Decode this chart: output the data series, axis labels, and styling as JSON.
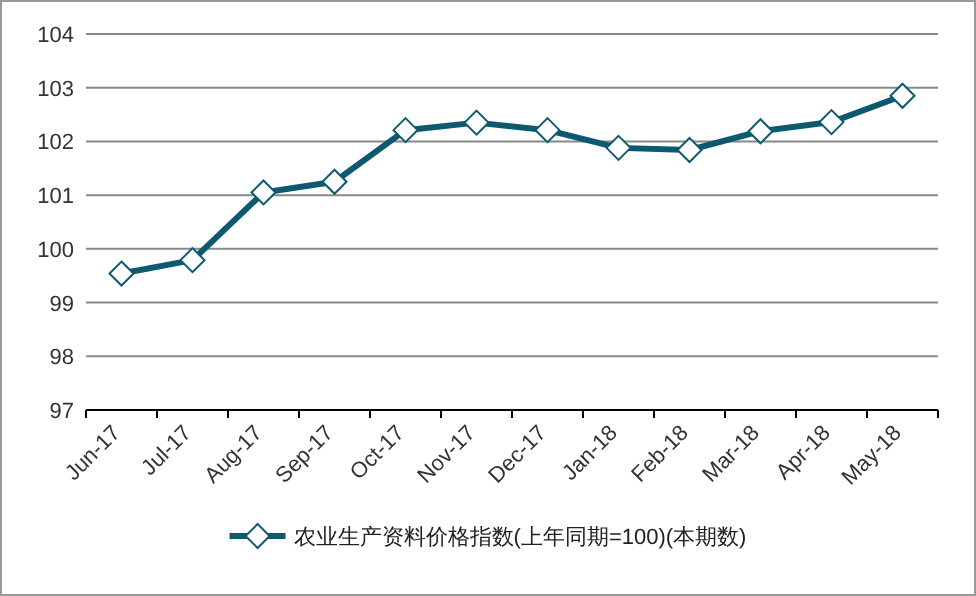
{
  "chart_data": {
    "type": "line",
    "categories": [
      "Jun-17",
      "Jul-17",
      "Aug-17",
      "Sep-17",
      "Oct-17",
      "Nov-17",
      "Dec-17",
      "Jan-18",
      "Feb-18",
      "Mar-18",
      "Apr-18",
      "May-18"
    ],
    "series": [
      {
        "name": "农业生产资料价格指数(上年同期=100)(本期数)",
        "color": "#0d5a70",
        "values": [
          99.54,
          99.79,
          101.05,
          101.25,
          102.21,
          102.35,
          102.21,
          101.88,
          101.84,
          102.19,
          102.36,
          102.85
        ]
      }
    ],
    "ylim": [
      97,
      104
    ],
    "yticks": [
      97,
      98,
      99,
      100,
      101,
      102,
      103,
      104
    ],
    "grid": "y",
    "legend": "bottom",
    "marker": "diamond",
    "line_style": "solid"
  }
}
